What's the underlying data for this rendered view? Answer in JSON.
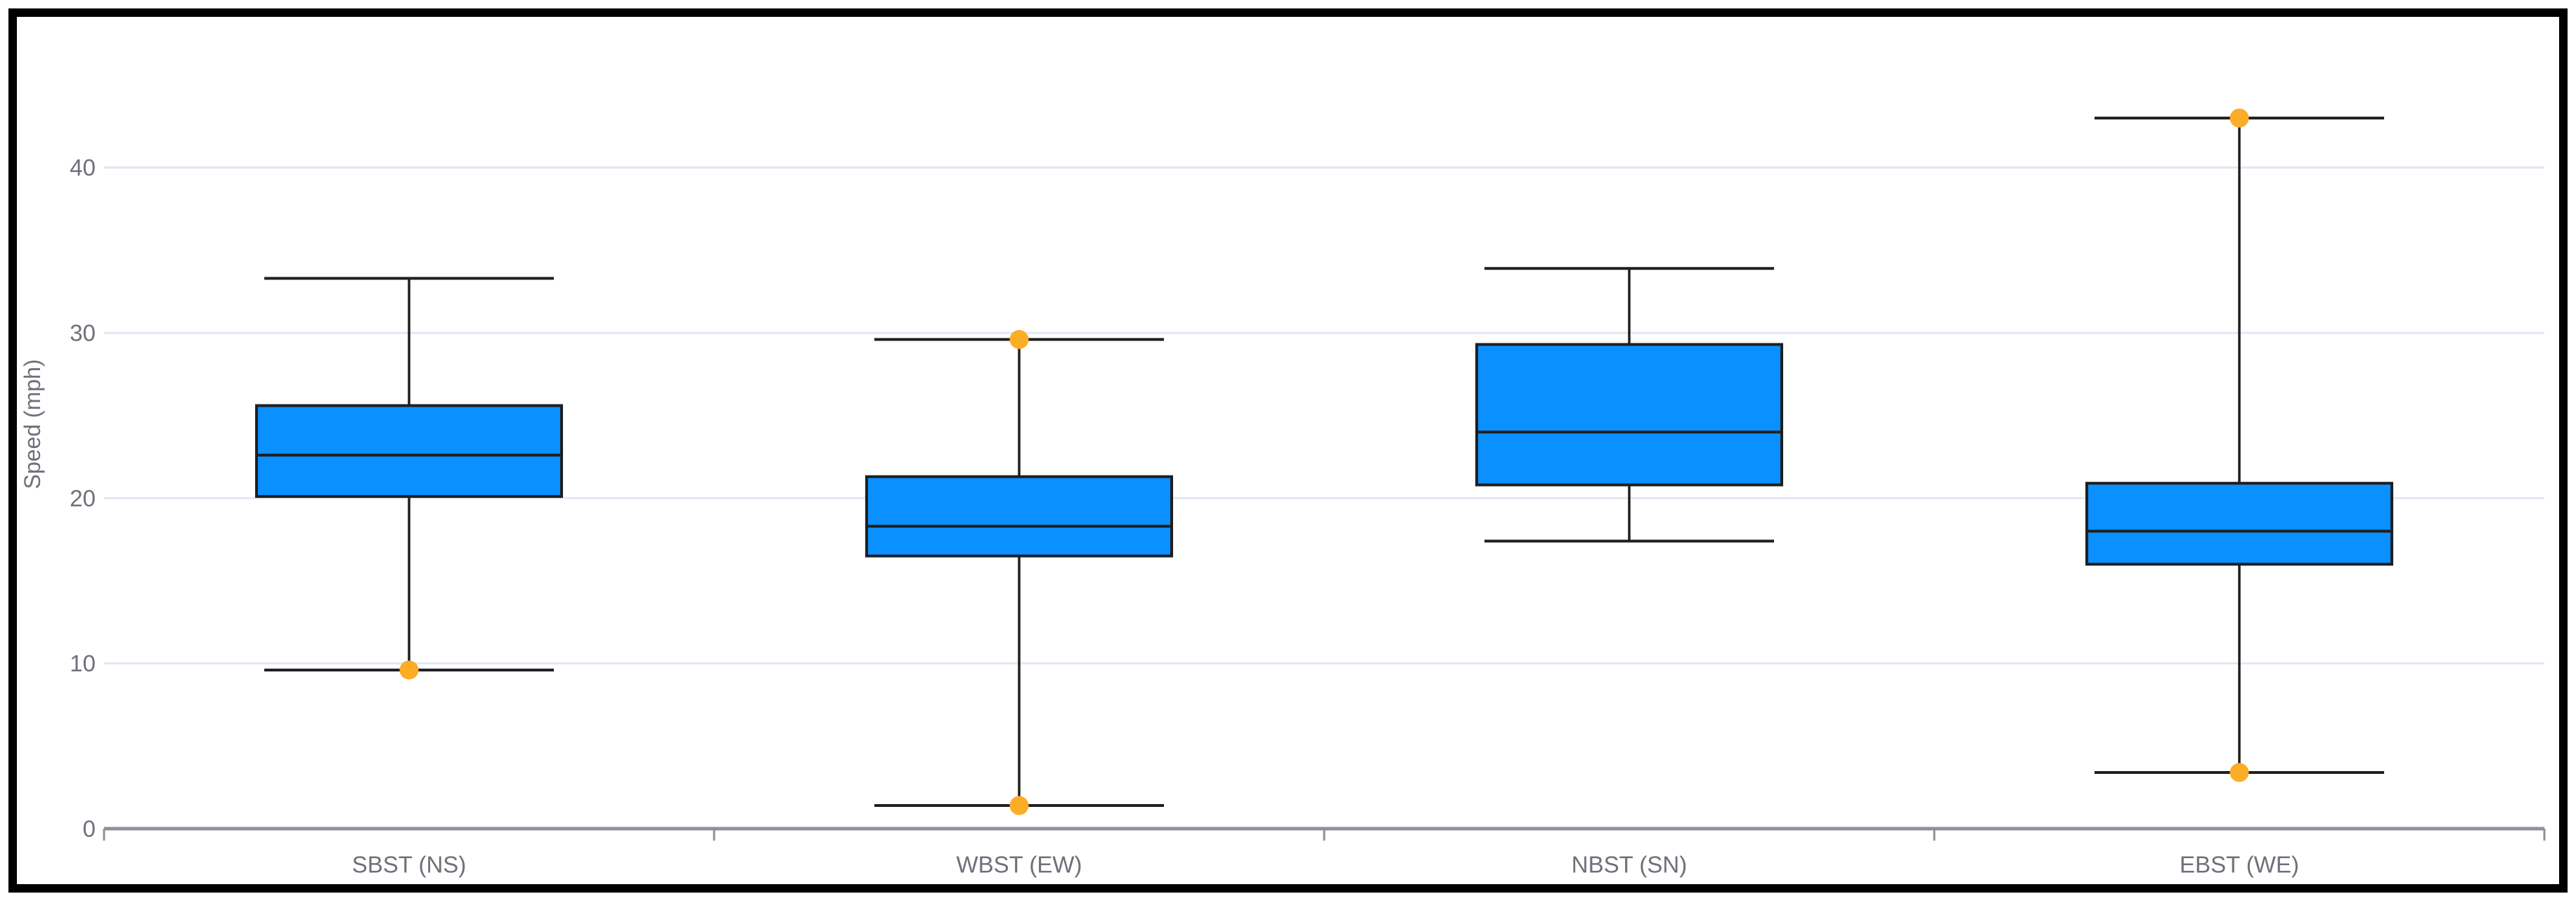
{
  "chart_data": {
    "type": "box",
    "title": "",
    "xlabel": "",
    "ylabel": "Speed (mph)",
    "ylim": [
      0,
      47
    ],
    "yticks": [
      0,
      10,
      20,
      30,
      40
    ],
    "grid": true,
    "legend": "none",
    "categories": [
      "SBST (NS)",
      "WBST (EW)",
      "NBST (SN)",
      "EBST (WE)"
    ],
    "series": [
      {
        "category": "SBST (NS)",
        "min": 9.6,
        "q1": 20.1,
        "median": 22.6,
        "q3": 25.6,
        "max": 33.3,
        "outlier_dots": [
          9.6
        ]
      },
      {
        "category": "WBST (EW)",
        "min": 1.4,
        "q1": 16.5,
        "median": 18.3,
        "q3": 21.3,
        "max": 29.6,
        "outlier_dots": [
          29.6,
          1.4
        ]
      },
      {
        "category": "NBST (SN)",
        "min": 17.4,
        "q1": 20.8,
        "median": 24.0,
        "q3": 29.3,
        "max": 33.9,
        "outlier_dots": []
      },
      {
        "category": "EBST (WE)",
        "min": 3.4,
        "q1": 16.0,
        "median": 18.0,
        "q3": 20.9,
        "max": 43.0,
        "outlier_dots": [
          43.0,
          3.4
        ]
      }
    ],
    "colors": {
      "box_fill": "#0A90FF",
      "box_stroke": "#1F1F1F",
      "whisker": "#1F1F1F",
      "outlier_dot": "#FBAD27",
      "gridline": "#E3E7F3",
      "axis_line": "#8E9199",
      "label_text": "#6E7079",
      "frame_border": "#000000",
      "background": "#FFFFFF"
    }
  }
}
